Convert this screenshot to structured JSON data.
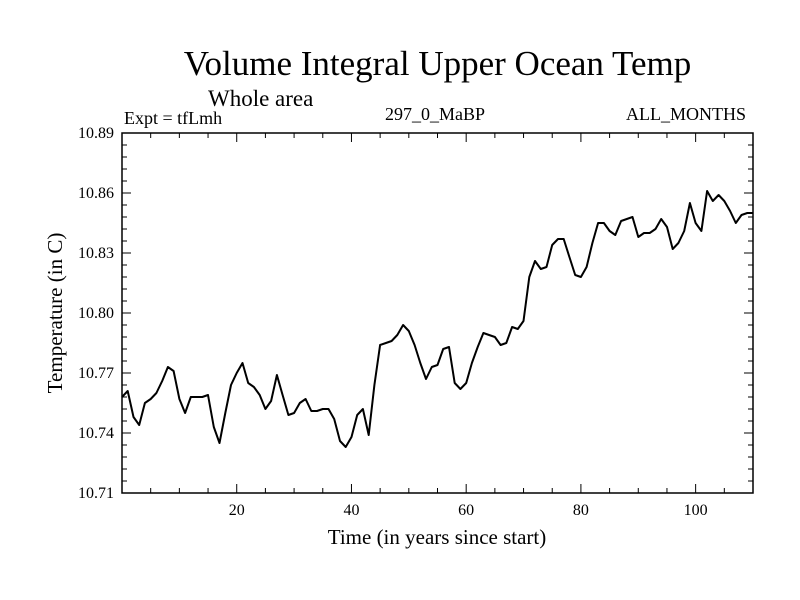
{
  "chart_data": {
    "type": "line",
    "title": "Volume Integral Upper Ocean Temp",
    "subtitle": "Whole area",
    "left_label": "Expt = tfLmh",
    "center_label": "297_0_MaBP",
    "right_label": "ALL_MONTHS",
    "xlabel": "Time (in years since start)",
    "ylabel": "Temperature (in C)",
    "xlim": [
      0,
      110
    ],
    "ylim": [
      10.71,
      10.89
    ],
    "x_ticks": [
      20,
      40,
      60,
      80,
      100
    ],
    "y_ticks": [
      "10.71",
      "10.74",
      "10.77",
      "10.80",
      "10.83",
      "10.86",
      "10.89"
    ],
    "series": [
      {
        "name": "tfLmh",
        "x": [
          0,
          1,
          2,
          3,
          4,
          5,
          6,
          7,
          8,
          9,
          10,
          11,
          12,
          13,
          14,
          15,
          16,
          17,
          18,
          19,
          20,
          21,
          22,
          23,
          24,
          25,
          26,
          27,
          28,
          29,
          30,
          31,
          32,
          33,
          34,
          35,
          36,
          37,
          38,
          39,
          40,
          41,
          42,
          43,
          44,
          45,
          46,
          47,
          48,
          49,
          50,
          51,
          52,
          53,
          54,
          55,
          56,
          57,
          58,
          59,
          60,
          61,
          62,
          63,
          64,
          65,
          66,
          67,
          68,
          69,
          70,
          71,
          72,
          73,
          74,
          75,
          76,
          77,
          78,
          79,
          80,
          81,
          82,
          83,
          84,
          85,
          86,
          87,
          88,
          89,
          90,
          91,
          92,
          93,
          94,
          95,
          96,
          97,
          98,
          99,
          100,
          101,
          102,
          103,
          104,
          105,
          106,
          107,
          108,
          109,
          110
        ],
        "values": [
          10.758,
          10.761,
          10.748,
          10.744,
          10.755,
          10.757,
          10.76,
          10.766,
          10.773,
          10.771,
          10.757,
          10.75,
          10.758,
          10.758,
          10.758,
          10.759,
          10.743,
          10.735,
          10.75,
          10.764,
          10.77,
          10.775,
          10.765,
          10.763,
          10.759,
          10.752,
          10.756,
          10.769,
          10.759,
          10.749,
          10.75,
          10.755,
          10.757,
          10.751,
          10.751,
          10.752,
          10.752,
          10.747,
          10.736,
          10.733,
          10.738,
          10.749,
          10.752,
          10.739,
          10.764,
          10.784,
          10.785,
          10.786,
          10.789,
          10.794,
          10.791,
          10.784,
          10.775,
          10.767,
          10.773,
          10.774,
          10.782,
          10.783,
          10.765,
          10.762,
          10.765,
          10.775,
          10.783,
          10.79,
          10.789,
          10.788,
          10.784,
          10.785,
          10.793,
          10.792,
          10.796,
          10.818,
          10.826,
          10.822,
          10.823,
          10.834,
          10.837,
          10.837,
          10.828,
          10.819,
          10.818,
          10.823,
          10.835,
          10.845,
          10.845,
          10.841,
          10.839,
          10.846,
          10.847,
          10.848,
          10.838,
          10.84,
          10.84,
          10.842,
          10.847,
          10.843,
          10.832,
          10.835,
          10.841,
          10.855,
          10.845,
          10.841,
          10.861,
          10.856,
          10.859,
          10.856,
          10.851,
          10.845,
          10.849,
          10.85,
          10.85
        ]
      }
    ]
  }
}
